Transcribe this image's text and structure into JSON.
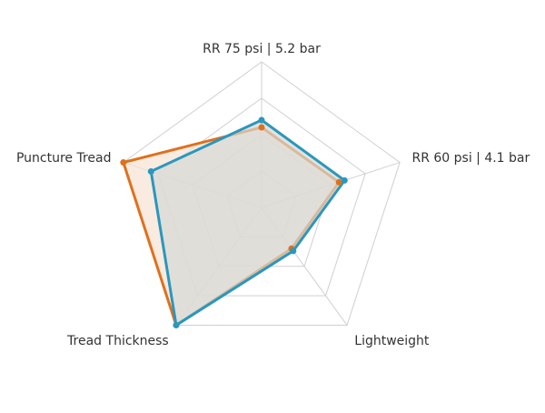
{
  "chart_data": {
    "type": "radar",
    "categories": [
      "RR 75 psi | 5.2 bar",
      "RR 60 psi | 4.1 bar",
      "Lightweight",
      "Tread Thickness",
      "Puncture Tread"
    ],
    "rlim": [
      0,
      100
    ],
    "rticks": [
      25,
      50,
      75,
      100
    ],
    "grid": true,
    "series": [
      {
        "color": "#e0701c",
        "fill": "#f6e3d2",
        "values": [
          55,
          56,
          35,
          100,
          100
        ]
      },
      {
        "color": "#2a97be",
        "fill": "#d6d8d4",
        "values": [
          60,
          60,
          37,
          100,
          80
        ]
      }
    ]
  }
}
